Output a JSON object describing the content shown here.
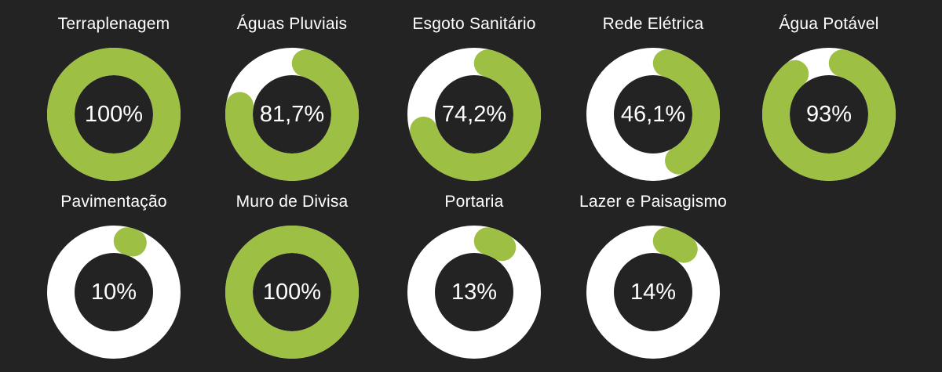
{
  "colors": {
    "background": "#232323",
    "progress": "#9dbf43",
    "track": "#ffffff",
    "inner": "#232323",
    "text": "#ffffff"
  },
  "chart_data": {
    "type": "donut",
    "items": [
      {
        "label": "Terraplenagem",
        "value": 100,
        "display": "100%"
      },
      {
        "label": "Águas Pluviais",
        "value": 81.7,
        "display": "81,7%"
      },
      {
        "label": "Esgoto Sanitário",
        "value": 74.2,
        "display": "74,2%"
      },
      {
        "label": "Rede Elétrica",
        "value": 46.1,
        "display": "46,1%"
      },
      {
        "label": "Água Potável",
        "value": 93,
        "display": "93%"
      },
      {
        "label": "Pavimentação",
        "value": 10,
        "display": "10%"
      },
      {
        "label": "Muro de Divisa",
        "value": 100,
        "display": "100%"
      },
      {
        "label": "Portaria",
        "value": 13,
        "display": "13%"
      },
      {
        "label": "Lazer e Paisagismo",
        "value": 14,
        "display": "14%"
      }
    ]
  }
}
